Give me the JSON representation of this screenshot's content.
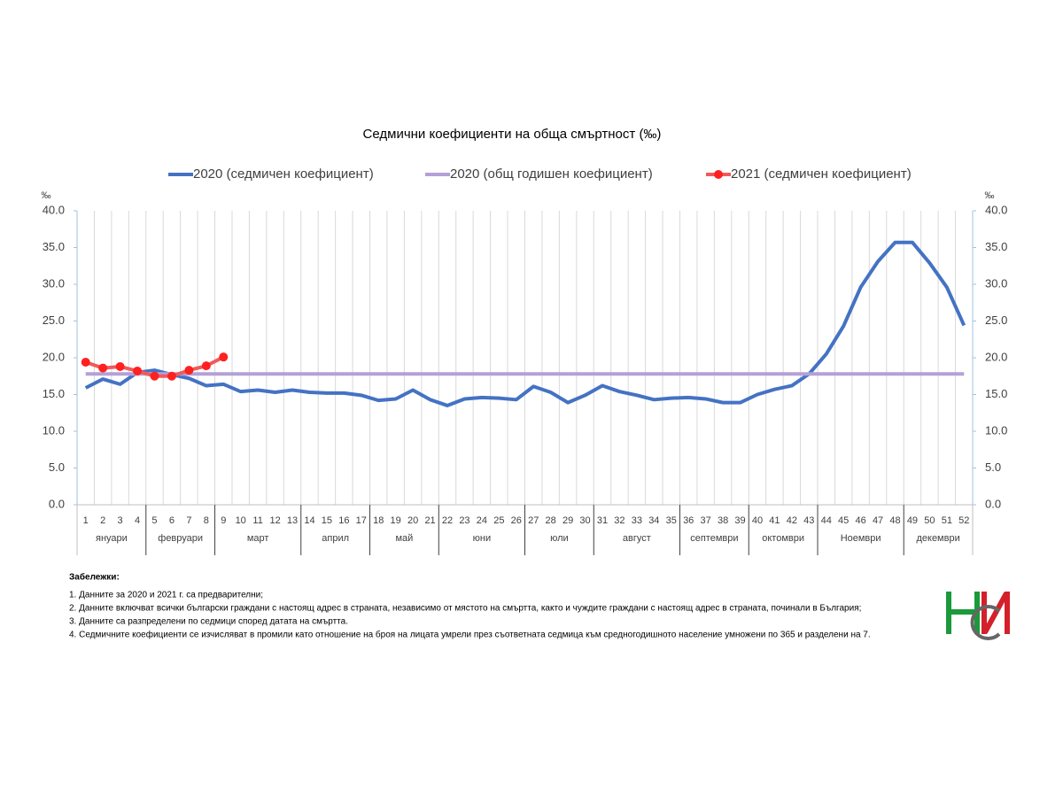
{
  "chart_data": {
    "type": "line",
    "title": "Седмични коефициенти на обща смъртност (‰)",
    "y_label": "‰",
    "y2_label": "‰",
    "categories": [
      1,
      2,
      3,
      4,
      5,
      6,
      7,
      8,
      9,
      10,
      11,
      12,
      13,
      14,
      15,
      16,
      17,
      18,
      19,
      20,
      21,
      22,
      23,
      24,
      25,
      26,
      27,
      28,
      29,
      30,
      31,
      32,
      33,
      34,
      35,
      36,
      37,
      38,
      39,
      40,
      41,
      42,
      43,
      44,
      45,
      46,
      47,
      48,
      49,
      50,
      51,
      52
    ],
    "months": [
      "януари",
      null,
      null,
      null,
      "февруари",
      null,
      null,
      null,
      "март",
      null,
      null,
      null,
      null,
      "април",
      null,
      null,
      null,
      "май",
      null,
      null,
      null,
      "юни",
      null,
      null,
      null,
      null,
      "юли",
      null,
      null,
      null,
      "август",
      null,
      null,
      null,
      null,
      "септември",
      null,
      null,
      null,
      "октомври",
      null,
      null,
      null,
      "Ноември",
      null,
      null,
      null,
      null,
      "декември",
      null,
      null,
      null
    ],
    "series": [
      {
        "name": "2020 (седмичен коефициент)",
        "color": "#4472c4",
        "markers": false,
        "values": [
          15.9,
          17.1,
          16.4,
          18.0,
          18.3,
          17.7,
          17.2,
          16.2,
          16.4,
          15.4,
          15.6,
          15.3,
          15.6,
          15.3,
          15.2,
          15.2,
          14.9,
          14.2,
          14.4,
          15.6,
          14.3,
          13.5,
          14.4,
          14.6,
          14.5,
          14.3,
          16.1,
          15.3,
          13.9,
          14.9,
          16.2,
          15.4,
          14.9,
          14.3,
          14.5,
          14.6,
          14.4,
          13.9,
          13.9,
          15.0,
          15.7,
          16.2,
          17.8,
          20.5,
          24.3,
          29.6,
          33.1,
          35.7,
          35.7,
          32.9,
          29.6,
          24.4
        ]
      },
      {
        "name": "2020 (общ годишен коефициент)",
        "color": "#b4a0d8",
        "markers": false,
        "values": [
          17.8,
          17.8,
          17.8,
          17.8,
          17.8,
          17.8,
          17.8,
          17.8,
          17.8,
          17.8,
          17.8,
          17.8,
          17.8,
          17.8,
          17.8,
          17.8,
          17.8,
          17.8,
          17.8,
          17.8,
          17.8,
          17.8,
          17.8,
          17.8,
          17.8,
          17.8,
          17.8,
          17.8,
          17.8,
          17.8,
          17.8,
          17.8,
          17.8,
          17.8,
          17.8,
          17.8,
          17.8,
          17.8,
          17.8,
          17.8,
          17.8,
          17.8,
          17.8,
          17.8,
          17.8,
          17.8,
          17.8,
          17.8,
          17.8,
          17.8,
          17.8,
          17.8
        ]
      },
      {
        "name": "2021 (седмичен коефициент)",
        "color": "#f05a5a",
        "marker_color": "#ff2020",
        "markers": true,
        "axis": "y2",
        "values": [
          19.4,
          18.6,
          18.8,
          18.2,
          17.5,
          17.5,
          18.3,
          18.9,
          20.1,
          null,
          null,
          null,
          null,
          null,
          null,
          null,
          null,
          null,
          null,
          null,
          null,
          null,
          null,
          null,
          null,
          null,
          null,
          null,
          null,
          null,
          null,
          null,
          null,
          null,
          null,
          null,
          null,
          null,
          null,
          null,
          null,
          null,
          null,
          null,
          null,
          null,
          null,
          null,
          null,
          null,
          null,
          null
        ]
      }
    ],
    "ylim": [
      0,
      40
    ],
    "yticks": [
      {
        "value": 0,
        "label": "0.0"
      },
      {
        "value": 5,
        "label": "5.0"
      },
      {
        "value": 10,
        "label": "10.0"
      },
      {
        "value": 15,
        "label": "15.0"
      },
      {
        "value": 20,
        "label": "20.0"
      },
      {
        "value": 25,
        "label": "25.0"
      },
      {
        "value": 30,
        "label": "30.0"
      },
      {
        "value": 35,
        "label": "35.0"
      },
      {
        "value": 40,
        "label": "40.0"
      }
    ],
    "y2lim": [
      0,
      40
    ],
    "y2ticks": [
      {
        "value": 0,
        "label": "0.0"
      },
      {
        "value": 5,
        "label": "5.0"
      },
      {
        "value": 10,
        "label": "10.0"
      },
      {
        "value": 15,
        "label": "15.0"
      },
      {
        "value": 20,
        "label": "20.0"
      },
      {
        "value": 25,
        "label": "25.0"
      },
      {
        "value": 30,
        "label": "30.0"
      },
      {
        "value": 35,
        "label": "35.0"
      },
      {
        "value": 40,
        "label": "40.0"
      }
    ],
    "legend": "top"
  },
  "notes": {
    "title": "Забележки:",
    "lines": [
      "1. Данните за 2020 и 2021 г. са предварителни;",
      "2. Данните включват всички български граждани с настоящ адрес в страната, независимо от мястото на смъртта, както и чуждите граждани с настоящ адрес в страната, починали в България;",
      "3. Данните са разпределени по седмици според датата на смъртта.",
      "4. Седмичните коефициенти се изчисляват в промили като отношение на броя на лицата умрели през съответната седмица към средногодишното население умножени по 365 и разделени на 7."
    ]
  }
}
